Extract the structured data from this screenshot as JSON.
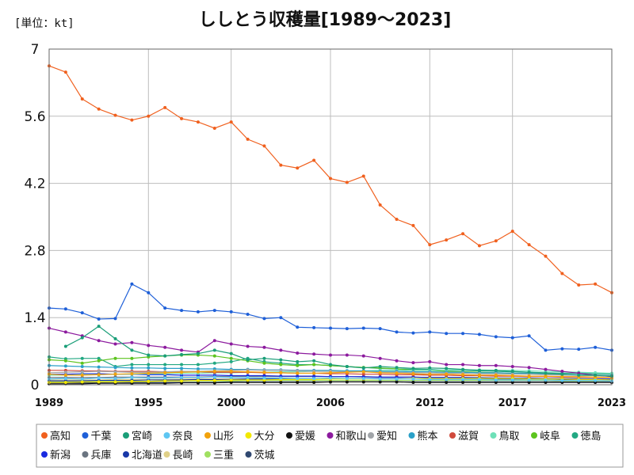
{
  "chart_data": {
    "type": "line",
    "title": "ししとう収穫量[1989～2023]",
    "unit_label": "[単位：kt]",
    "xlabel": "",
    "ylabel": "",
    "x": [
      1989,
      1990,
      1991,
      1992,
      1993,
      1994,
      1995,
      1996,
      1997,
      1998,
      1999,
      2000,
      2001,
      2002,
      2003,
      2004,
      2005,
      2006,
      2007,
      2008,
      2009,
      2010,
      2011,
      2012,
      2013,
      2014,
      2015,
      2016,
      2017,
      2018,
      2019,
      2020,
      2021,
      2022,
      2023
    ],
    "xticks": [
      1989,
      1995,
      2000,
      2006,
      2012,
      2017,
      2023
    ],
    "xlim": [
      1989,
      2023
    ],
    "ylim": [
      0,
      7
    ],
    "yticks": [
      0,
      1.4,
      2.8,
      4.2,
      5.6,
      7
    ],
    "ytick_labels": [
      "0",
      "1.4",
      "2.8",
      "4.2",
      "5.6",
      "7"
    ],
    "grid": true,
    "legend_position": "bottom",
    "series": [
      {
        "name": "高知",
        "color": "#f0601e",
        "values": [
          6.65,
          6.52,
          5.96,
          5.75,
          5.62,
          5.52,
          5.6,
          5.78,
          5.55,
          5.48,
          5.35,
          5.48,
          5.12,
          4.98,
          4.58,
          4.52,
          4.68,
          4.3,
          4.22,
          4.35,
          3.75,
          3.45,
          3.32,
          2.92,
          3.02,
          3.15,
          2.9,
          3.0,
          3.2,
          2.92,
          2.68,
          2.32,
          2.08,
          2.1,
          1.92
        ]
      },
      {
        "name": "千葉",
        "color": "#1e5fd8",
        "values": [
          1.6,
          1.58,
          1.5,
          1.37,
          1.38,
          2.1,
          1.92,
          1.6,
          1.55,
          1.52,
          1.55,
          1.52,
          1.47,
          1.38,
          1.4,
          1.2,
          1.19,
          1.18,
          1.17,
          1.18,
          1.17,
          1.1,
          1.08,
          1.1,
          1.07,
          1.07,
          1.05,
          1.0,
          0.98,
          1.02,
          0.72,
          0.75,
          0.74,
          0.78,
          0.72
        ]
      },
      {
        "name": "宮崎",
        "color": "#1a9e78",
        "values": [
          null,
          0.8,
          0.98,
          1.22,
          0.96,
          0.72,
          0.62,
          0.6,
          0.63,
          0.65,
          0.72,
          0.65,
          0.52,
          0.55,
          0.52,
          0.48,
          0.5,
          0.42,
          0.38,
          0.35,
          0.38,
          0.36,
          0.34,
          0.35,
          0.34,
          0.32,
          0.3,
          0.3,
          0.28,
          0.26,
          0.24,
          0.22,
          0.2,
          0.2,
          0.18
        ]
      },
      {
        "name": "奈良",
        "color": "#5ec6f2",
        "values": [
          0.12,
          0.13,
          0.12,
          0.14,
          0.13,
          0.15,
          0.14,
          0.14,
          0.15,
          0.15,
          0.16,
          0.15,
          0.15,
          0.14,
          0.14,
          0.13,
          0.13,
          0.14,
          0.13,
          0.13,
          0.12,
          0.12,
          0.12,
          0.11,
          0.11,
          0.11,
          0.11,
          0.1,
          0.1,
          0.1,
          0.1,
          0.09,
          0.09,
          0.09,
          0.08
        ]
      },
      {
        "name": "山形",
        "color": "#f2a20c",
        "values": [
          0.22,
          0.2,
          0.2,
          0.21,
          0.22,
          0.23,
          0.24,
          0.25,
          0.26,
          0.27,
          0.28,
          0.28,
          0.27,
          0.26,
          0.25,
          0.24,
          0.24,
          0.25,
          0.26,
          0.27,
          0.25,
          0.24,
          0.23,
          0.22,
          0.22,
          0.21,
          0.2,
          0.2,
          0.19,
          0.18,
          0.18,
          0.17,
          0.17,
          0.16,
          0.15
        ]
      },
      {
        "name": "大分",
        "color": "#f2e800",
        "values": [
          0.05,
          0.05,
          0.06,
          0.06,
          0.06,
          0.07,
          0.07,
          0.08,
          0.08,
          0.09,
          0.09,
          0.1,
          0.1,
          0.1,
          0.11,
          0.11,
          0.11,
          0.12,
          0.12,
          0.12,
          0.12,
          0.12,
          0.13,
          0.13,
          0.13,
          0.13,
          0.13,
          0.13,
          0.13,
          0.12,
          0.12,
          0.12,
          0.11,
          0.11,
          0.1
        ]
      },
      {
        "name": "愛媛",
        "color": "#111111",
        "values": [
          0.02,
          0.02,
          0.02,
          0.03,
          0.03,
          0.03,
          0.03,
          0.03,
          0.04,
          0.04,
          0.04,
          0.05,
          0.05,
          0.05,
          0.05,
          0.05,
          0.05,
          0.06,
          0.06,
          0.06,
          0.06,
          0.06,
          0.05,
          0.05,
          0.05,
          0.05,
          0.05,
          0.05,
          0.05,
          0.05,
          0.05,
          0.05,
          0.05,
          0.05,
          0.05
        ]
      },
      {
        "name": "和歌山",
        "color": "#8c1a9e",
        "values": [
          1.18,
          1.1,
          1.02,
          0.92,
          0.85,
          0.88,
          0.82,
          0.78,
          0.72,
          0.68,
          0.92,
          0.85,
          0.8,
          0.78,
          0.72,
          0.66,
          0.64,
          0.62,
          0.62,
          0.6,
          0.55,
          0.5,
          0.46,
          0.48,
          0.42,
          0.42,
          0.4,
          0.4,
          0.38,
          0.36,
          0.32,
          0.28,
          0.24,
          0.2,
          0.17
        ]
      },
      {
        "name": "愛知",
        "color": "#a0a4a8",
        "values": [
          0.25,
          0.26,
          0.27,
          0.28,
          0.27,
          0.26,
          0.26,
          0.27,
          0.28,
          0.28,
          0.29,
          0.3,
          0.31,
          0.3,
          0.3,
          0.29,
          0.28,
          0.28,
          0.27,
          0.27,
          0.26,
          0.26,
          0.25,
          0.25,
          0.24,
          0.24,
          0.23,
          0.23,
          0.22,
          0.22,
          0.21,
          0.2,
          0.2,
          0.19,
          0.18
        ]
      },
      {
        "name": "熊本",
        "color": "#2aa0c8",
        "values": [
          0.4,
          0.39,
          0.38,
          0.37,
          0.36,
          0.35,
          0.35,
          0.34,
          0.34,
          0.33,
          0.33,
          0.32,
          0.32,
          0.31,
          0.31,
          0.3,
          0.3,
          0.3,
          0.29,
          0.29,
          0.28,
          0.28,
          0.27,
          0.27,
          0.26,
          0.26,
          0.25,
          0.25,
          0.24,
          0.24,
          0.23,
          0.22,
          0.21,
          0.2,
          0.19
        ]
      },
      {
        "name": "滋賀",
        "color": "#d04a3c",
        "values": [
          0.3,
          0.3,
          0.29,
          0.29,
          0.28,
          0.28,
          0.28,
          0.27,
          0.27,
          0.27,
          0.26,
          0.26,
          0.26,
          0.25,
          0.25,
          0.24,
          0.24,
          0.23,
          0.23,
          0.22,
          0.22,
          0.21,
          0.21,
          0.2,
          0.2,
          0.19,
          0.19,
          0.18,
          0.18,
          0.17,
          0.17,
          0.16,
          0.16,
          0.15,
          0.15
        ]
      },
      {
        "name": "鳥取",
        "color": "#6ee0b8",
        "values": [
          0.2,
          0.2,
          0.21,
          0.21,
          0.22,
          0.22,
          0.23,
          0.23,
          0.24,
          0.24,
          0.25,
          0.25,
          0.26,
          0.26,
          0.27,
          0.27,
          0.28,
          0.28,
          0.29,
          0.29,
          0.3,
          0.3,
          0.3,
          0.3,
          0.31,
          0.31,
          0.31,
          0.3,
          0.3,
          0.29,
          0.28,
          0.27,
          0.26,
          0.25,
          0.24
        ]
      },
      {
        "name": "岐阜",
        "color": "#5cc41e",
        "values": [
          0.52,
          0.5,
          0.45,
          0.5,
          0.55,
          0.55,
          0.58,
          0.6,
          0.62,
          0.62,
          0.6,
          0.55,
          0.5,
          0.45,
          0.42,
          0.4,
          0.42,
          0.4,
          0.38,
          0.36,
          0.35,
          0.33,
          0.3,
          0.3,
          0.28,
          0.27,
          0.26,
          0.25,
          0.24,
          0.23,
          0.22,
          0.21,
          0.2,
          0.19,
          0.18
        ]
      },
      {
        "name": "徳島",
        "color": "#22a882",
        "values": [
          0.58,
          0.54,
          0.55,
          0.55,
          0.38,
          0.42,
          0.42,
          0.42,
          0.42,
          0.42,
          0.45,
          0.48,
          0.55,
          0.48,
          0.45,
          0.42,
          0.42,
          0.4,
          0.38,
          0.36,
          0.34,
          0.33,
          0.32,
          0.32,
          0.3,
          0.3,
          0.29,
          0.28,
          0.27,
          0.26,
          0.25,
          0.24,
          0.24,
          0.23,
          0.22
        ]
      },
      {
        "name": "新潟",
        "color": "#1a2ae0",
        "values": [
          0.22,
          0.22,
          0.23,
          0.23,
          0.22,
          0.22,
          0.21,
          0.21,
          0.2,
          0.2,
          0.2,
          0.19,
          0.19,
          0.19,
          0.18,
          0.18,
          0.18,
          0.17,
          0.17,
          0.17,
          0.16,
          0.16,
          0.16,
          0.15,
          0.15,
          0.15,
          0.14,
          0.14,
          0.14,
          0.13,
          0.13,
          0.13,
          0.12,
          0.12,
          0.12
        ]
      },
      {
        "name": "兵庫",
        "color": "#6a7480",
        "values": [
          0.15,
          0.15,
          0.15,
          0.15,
          0.16,
          0.16,
          0.16,
          0.16,
          0.16,
          0.16,
          0.17,
          0.17,
          0.17,
          0.17,
          0.17,
          0.17,
          0.17,
          0.17,
          0.17,
          0.16,
          0.16,
          0.16,
          0.16,
          0.15,
          0.15,
          0.15,
          0.15,
          0.14,
          0.14,
          0.14,
          0.13,
          0.13,
          0.13,
          0.12,
          0.12
        ]
      },
      {
        "name": "北海道",
        "color": "#1838a8",
        "values": [
          0.08,
          0.08,
          0.08,
          0.09,
          0.09,
          0.09,
          0.1,
          0.1,
          0.1,
          0.11,
          0.11,
          0.11,
          0.12,
          0.12,
          0.12,
          0.12,
          0.13,
          0.13,
          0.13,
          0.13,
          0.13,
          0.13,
          0.13,
          0.13,
          0.13,
          0.13,
          0.13,
          0.12,
          0.12,
          0.12,
          0.12,
          0.11,
          0.11,
          0.11,
          0.1
        ]
      },
      {
        "name": "長崎",
        "color": "#e0d088",
        "values": [
          0.1,
          0.1,
          0.1,
          0.1,
          0.11,
          0.11,
          0.11,
          0.11,
          0.12,
          0.12,
          0.12,
          0.12,
          0.12,
          0.13,
          0.13,
          0.13,
          0.13,
          0.13,
          0.13,
          0.13,
          0.13,
          0.13,
          0.13,
          0.13,
          0.13,
          0.13,
          0.12,
          0.12,
          0.12,
          0.12,
          0.12,
          0.11,
          0.11,
          0.11,
          0.11
        ]
      },
      {
        "name": "三重",
        "color": "#a0e060",
        "values": [
          0.06,
          0.06,
          0.06,
          0.07,
          0.07,
          0.07,
          0.07,
          0.08,
          0.08,
          0.08,
          0.08,
          0.08,
          0.09,
          0.09,
          0.09,
          0.09,
          0.09,
          0.09,
          0.09,
          0.09,
          0.09,
          0.09,
          0.09,
          0.09,
          0.09,
          0.09,
          0.09,
          0.09,
          0.09,
          0.09,
          0.09,
          0.08,
          0.08,
          0.08,
          0.08
        ]
      },
      {
        "name": "茨城",
        "color": "#304870",
        "values": [
          0.04,
          0.04,
          0.04,
          0.04,
          0.05,
          0.05,
          0.05,
          0.05,
          0.05,
          0.05,
          0.05,
          0.06,
          0.06,
          0.06,
          0.06,
          0.06,
          0.06,
          0.06,
          0.06,
          0.06,
          0.06,
          0.06,
          0.06,
          0.06,
          0.06,
          0.06,
          0.06,
          0.06,
          0.06,
          0.06,
          0.06,
          0.06,
          0.06,
          0.06,
          0.06
        ]
      }
    ]
  }
}
